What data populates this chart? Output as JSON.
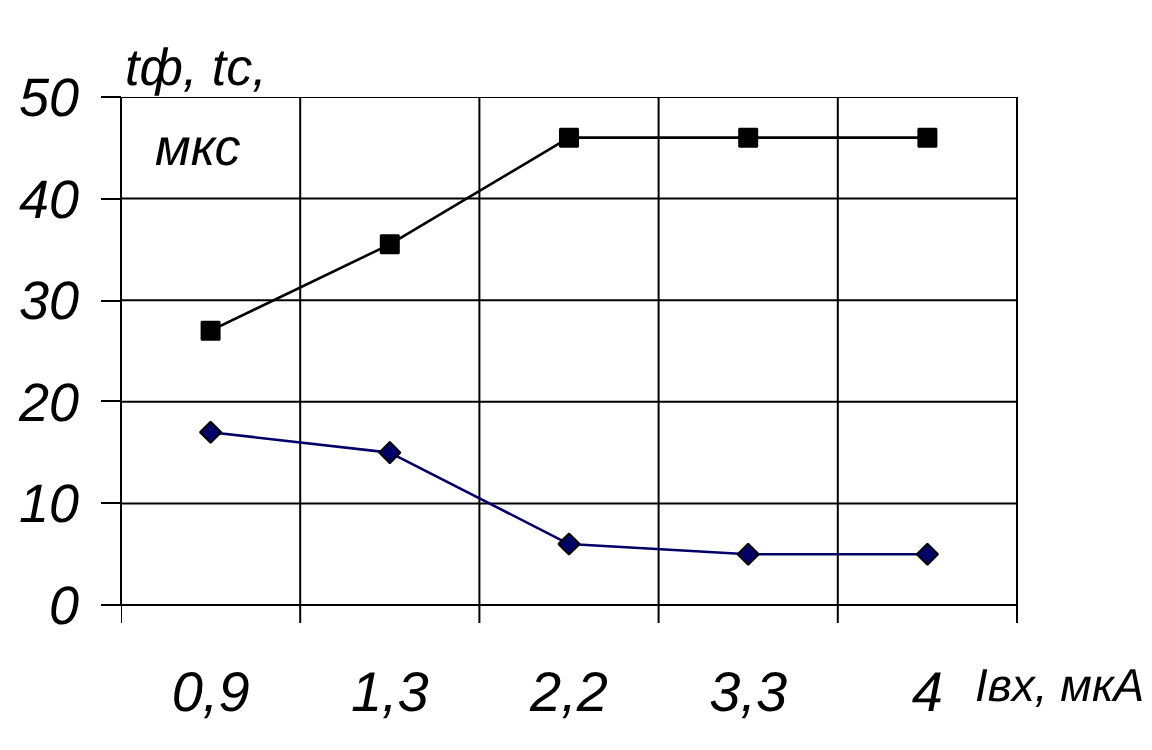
{
  "chart_data": {
    "type": "line",
    "ylabel": "tф, tс, мкс",
    "xlabel": "Iвх, мкА",
    "categories": [
      "0,9",
      "1,3",
      "2,2",
      "3,3",
      "4"
    ],
    "series": [
      {
        "color": "#000000",
        "marker": "square",
        "values": [
          27,
          35.5,
          46,
          46,
          46
        ]
      },
      {
        "color": "#000066",
        "marker": "diamond",
        "values": [
          17,
          15,
          6,
          5,
          5
        ]
      }
    ],
    "ylim": [
      0,
      50
    ],
    "yticks": [
      0,
      10,
      20,
      30,
      40,
      50
    ],
    "grid": true
  }
}
